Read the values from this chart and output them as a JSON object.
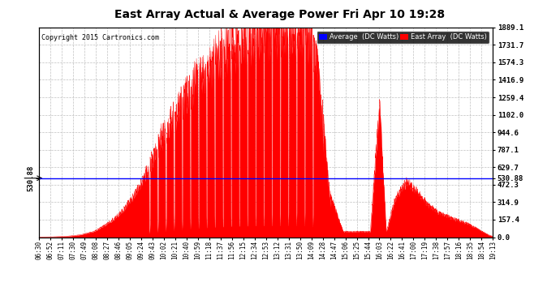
{
  "title": "East Array Actual & Average Power Fri Apr 10 19:28",
  "copyright": "Copyright 2015 Cartronics.com",
  "yticks": [
    0.0,
    157.4,
    314.9,
    472.3,
    629.7,
    787.1,
    944.6,
    1102.0,
    1259.4,
    1416.9,
    1574.3,
    1731.7,
    1889.1
  ],
  "ymax": 1889.1,
  "ymin": 0.0,
  "average_line": 530.88,
  "legend_average_label": "Average  (DC Watts)",
  "legend_east_label": "East Array  (DC Watts)",
  "xtick_labels": [
    "06:30",
    "06:52",
    "07:11",
    "07:30",
    "07:49",
    "08:08",
    "08:27",
    "08:46",
    "09:05",
    "09:24",
    "09:43",
    "10:02",
    "10:21",
    "10:40",
    "10:59",
    "11:18",
    "11:37",
    "11:56",
    "12:15",
    "12:34",
    "12:53",
    "13:12",
    "13:31",
    "13:50",
    "14:09",
    "14:28",
    "14:47",
    "15:06",
    "15:25",
    "15:44",
    "16:03",
    "16:22",
    "16:41",
    "17:00",
    "17:19",
    "17:38",
    "17:57",
    "18:16",
    "18:35",
    "18:54",
    "19:13"
  ],
  "background_color": "#ffffff",
  "plot_bg_color": "#ffffff",
  "fill_color": "#ff0000",
  "grid_color": "#c0c0c0",
  "average_line_color": "#0000ff",
  "title_color": "#000000"
}
